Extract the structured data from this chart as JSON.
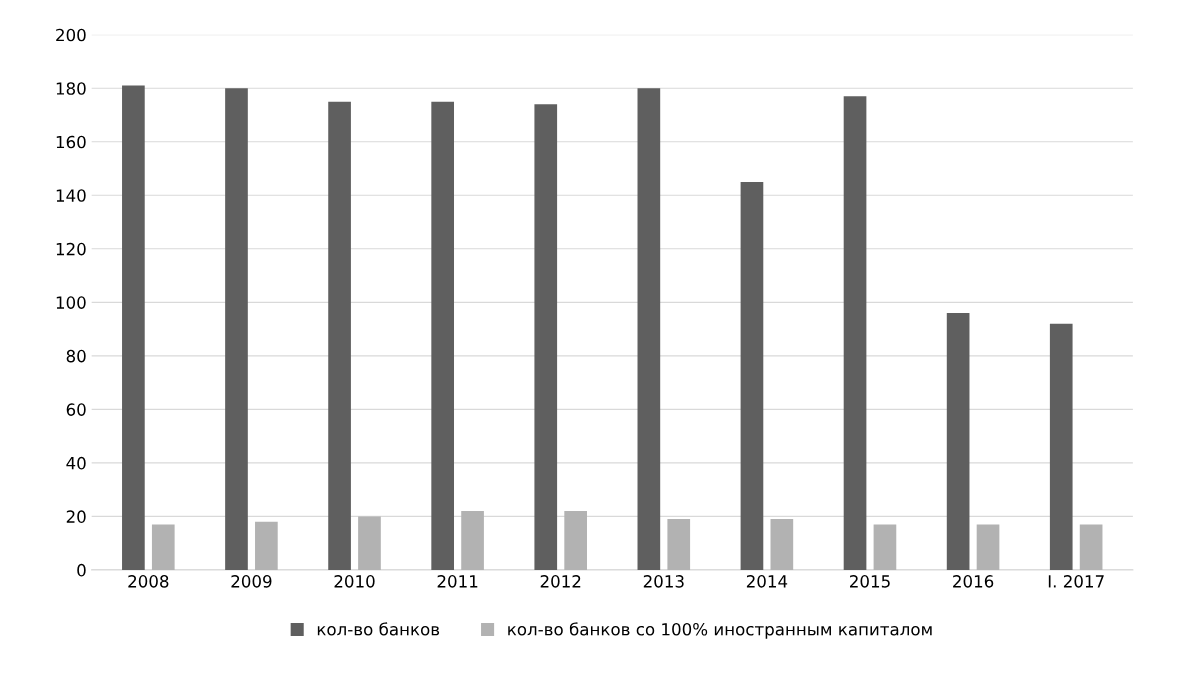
{
  "chart_data": {
    "type": "bar",
    "categories": [
      "2008",
      "2009",
      "2010",
      "2011",
      "2012",
      "2013",
      "2014",
      "2015",
      "2016",
      "I. 2017"
    ],
    "series": [
      {
        "name": "кол-во банков",
        "color": "#5f5f5f",
        "values": [
          181,
          180,
          175,
          175,
          174,
          180,
          145,
          177,
          96,
          92
        ]
      },
      {
        "name": "кол-во банков со 100% иностранным капиталом",
        "color": "#b2b2b2",
        "values": [
          17,
          18,
          20,
          22,
          22,
          19,
          19,
          17,
          17,
          17
        ]
      }
    ],
    "ylim": [
      0,
      200
    ],
    "yticks": [
      0,
      20,
      40,
      60,
      80,
      100,
      120,
      140,
      160,
      180,
      200
    ],
    "grid": "y",
    "legend": "bottom"
  }
}
